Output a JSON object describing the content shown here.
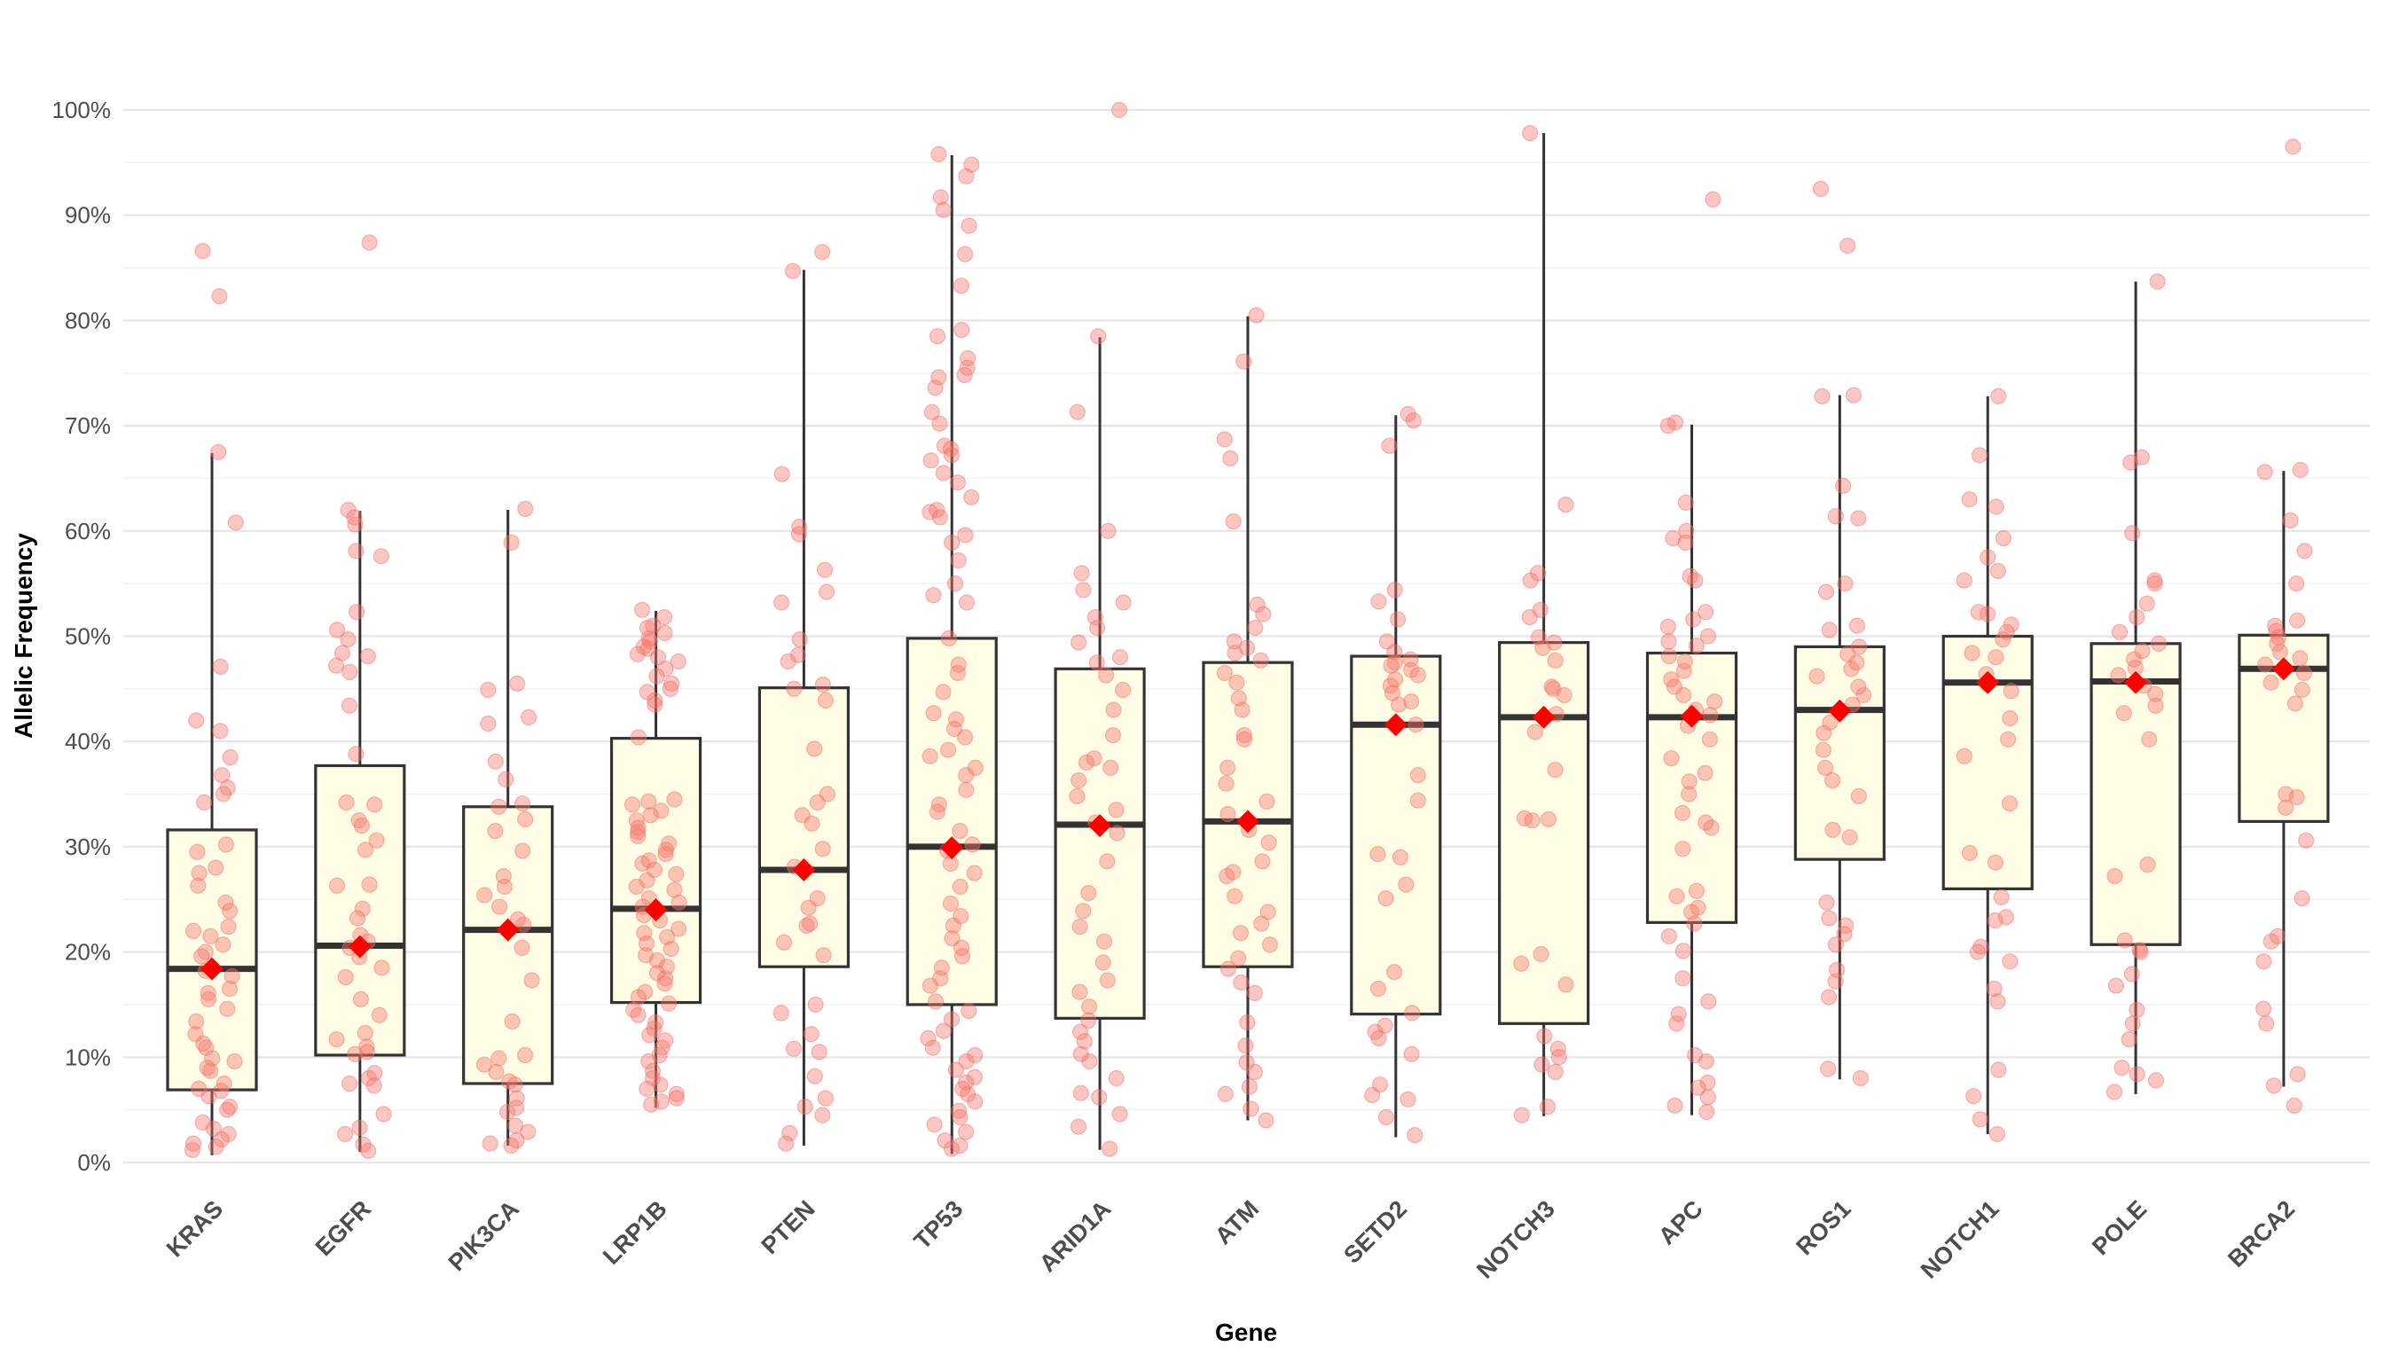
{
  "chart_data": {
    "type": "box",
    "title": "",
    "xlabel": "Gene",
    "ylabel": "Allelic Frequency",
    "ylim": [
      0,
      100
    ],
    "yticks": [
      "0%",
      "10%",
      "20%",
      "30%",
      "40%",
      "50%",
      "60%",
      "70%",
      "80%",
      "90%",
      "100%"
    ],
    "ytick_values": [
      0,
      10,
      20,
      30,
      40,
      50,
      60,
      70,
      80,
      90,
      100
    ],
    "grid": true,
    "legend": "none",
    "colors": {
      "box_fill": "#fffde6",
      "box_stroke": "#333333",
      "points": "#f8766d",
      "mean_marker": "#ff0000"
    },
    "categories": [
      "KRAS",
      "EGFR",
      "PIK3CA",
      "LRP1B",
      "PTEN",
      "TP53",
      "ARID1A",
      "ATM",
      "SETD2",
      "NOTCH3",
      "APC",
      "ROS1",
      "NOTCH1",
      "POLE",
      "BRCA2"
    ],
    "boxes": [
      {
        "gene": "KRAS",
        "whisker_low": 0.7,
        "q1": 6.9,
        "median": 18.4,
        "q3": 31.6,
        "whisker_high": 67.4,
        "mean": 18.4
      },
      {
        "gene": "EGFR",
        "whisker_low": 1.0,
        "q1": 10.2,
        "median": 20.6,
        "q3": 37.7,
        "whisker_high": 61.9,
        "mean": 20.5
      },
      {
        "gene": "PIK3CA",
        "whisker_low": 1.6,
        "q1": 7.5,
        "median": 22.1,
        "q3": 33.8,
        "whisker_high": 62.0,
        "mean": 22.1
      },
      {
        "gene": "LRP1B",
        "whisker_low": 5.2,
        "q1": 15.2,
        "median": 24.1,
        "q3": 40.3,
        "whisker_high": 52.4,
        "mean": 24.0
      },
      {
        "gene": "PTEN",
        "whisker_low": 1.6,
        "q1": 18.6,
        "median": 27.8,
        "q3": 45.1,
        "whisker_high": 84.8,
        "mean": 27.8
      },
      {
        "gene": "TP53",
        "whisker_low": 0.8,
        "q1": 15.0,
        "median": 30.0,
        "q3": 49.8,
        "whisker_high": 95.7,
        "mean": 29.9
      },
      {
        "gene": "ARID1A",
        "whisker_low": 1.2,
        "q1": 13.7,
        "median": 32.1,
        "q3": 46.9,
        "whisker_high": 78.4,
        "mean": 32.0
      },
      {
        "gene": "ATM",
        "whisker_low": 4.0,
        "q1": 18.6,
        "median": 32.4,
        "q3": 47.5,
        "whisker_high": 80.4,
        "mean": 32.4
      },
      {
        "gene": "SETD2",
        "whisker_low": 2.4,
        "q1": 14.1,
        "median": 41.6,
        "q3": 48.1,
        "whisker_high": 71.0,
        "mean": 41.6
      },
      {
        "gene": "NOTCH3",
        "whisker_low": 4.4,
        "q1": 13.2,
        "median": 42.3,
        "q3": 49.4,
        "whisker_high": 97.8,
        "mean": 42.3
      },
      {
        "gene": "APC",
        "whisker_low": 4.5,
        "q1": 22.8,
        "median": 42.3,
        "q3": 48.4,
        "whisker_high": 70.1,
        "mean": 42.4
      },
      {
        "gene": "ROS1",
        "whisker_low": 7.9,
        "q1": 28.8,
        "median": 43.0,
        "q3": 49.0,
        "whisker_high": 72.9,
        "mean": 42.9
      },
      {
        "gene": "NOTCH1",
        "whisker_low": 2.7,
        "q1": 26.0,
        "median": 45.6,
        "q3": 50.0,
        "whisker_high": 72.8,
        "mean": 45.6
      },
      {
        "gene": "POLE",
        "whisker_low": 6.5,
        "q1": 20.7,
        "median": 45.7,
        "q3": 49.3,
        "whisker_high": 83.7,
        "mean": 45.6
      },
      {
        "gene": "BRCA2",
        "whisker_low": 7.2,
        "q1": 32.4,
        "median": 46.9,
        "q3": 50.1,
        "whisker_high": 65.7,
        "mean": 46.9
      }
    ],
    "points": {
      "KRAS": [
        82.3,
        86.6,
        67.5,
        60.8,
        47.1,
        41.0,
        42.0,
        38.5,
        36.8,
        35.6,
        35.0,
        34.2,
        30.2,
        29.5,
        28.0,
        27.5,
        26.3,
        24.7,
        23.9,
        22.4,
        22.0,
        21.5,
        20.7,
        20.0,
        19.6,
        18.2,
        17.7,
        16.5,
        16.1,
        15.5,
        14.6,
        13.4,
        12.2,
        11.3,
        10.9,
        9.9,
        9.6,
        8.7,
        7.5,
        7.0,
        6.3,
        5.3,
        5.0,
        3.8,
        3.2,
        2.7,
        2.2,
        1.8,
        1.5,
        1.2,
        6.8,
        9.0
      ],
      "EGFR": [
        87.4,
        62.0,
        61.3,
        60.6,
        58.1,
        57.6,
        52.3,
        50.6,
        49.7,
        48.4,
        48.1,
        47.2,
        46.6,
        43.4,
        38.8,
        34.2,
        34.0,
        32.5,
        32.0,
        30.6,
        29.7,
        26.4,
        26.3,
        24.1,
        23.2,
        21.6,
        21.0,
        20.4,
        19.5,
        18.5,
        17.6,
        15.5,
        14.0,
        12.3,
        11.7,
        11.0,
        10.5,
        10.3,
        8.5,
        8.0,
        7.5,
        7.3,
        4.6,
        3.3,
        2.7,
        1.7,
        1.1
      ],
      "PIK3CA": [
        62.1,
        58.9,
        45.5,
        44.9,
        42.3,
        41.7,
        38.1,
        36.4,
        34.1,
        33.8,
        32.6,
        31.5,
        29.6,
        27.2,
        26.2,
        25.4,
        24.3,
        23.1,
        22.6,
        20.4,
        17.3,
        13.4,
        10.2,
        9.9,
        9.3,
        8.6,
        7.7,
        7.4,
        6.1,
        5.2,
        4.8,
        3.5,
        2.9,
        2.1,
        1.8,
        1.6
      ],
      "LRP1B": [
        52.5,
        51.8,
        51.0,
        50.8,
        50.3,
        49.8,
        49.5,
        49.0,
        48.8,
        48.3,
        48.0,
        47.6,
        46.9,
        46.2,
        45.5,
        45.0,
        44.7,
        43.9,
        43.5,
        40.4,
        34.5,
        34.3,
        34.0,
        33.4,
        33.0,
        32.5,
        31.8,
        31.4,
        31.0,
        30.3,
        29.7,
        29.3,
        28.7,
        28.4,
        27.8,
        27.4,
        26.8,
        26.2,
        25.9,
        25.1,
        24.7,
        24.3,
        23.5,
        23.0,
        22.2,
        21.8,
        21.4,
        20.8,
        20.3,
        19.7,
        19.2,
        18.6,
        18.0,
        17.5,
        17.0,
        16.2,
        15.7,
        15.1,
        14.5,
        14.0,
        13.3,
        12.7,
        12.1,
        11.6,
        10.9,
        10.2,
        9.6,
        8.7,
        8.0,
        7.4,
        7.0,
        6.5,
        6.1,
        5.8,
        5.5
      ],
      "PTEN": [
        86.5,
        84.7,
        65.4,
        60.4,
        59.7,
        56.3,
        54.2,
        53.2,
        49.7,
        48.2,
        47.6,
        45.4,
        45.0,
        43.9,
        39.3,
        35.0,
        34.2,
        33.0,
        32.2,
        29.8,
        28.1,
        25.1,
        24.2,
        22.7,
        22.5,
        20.9,
        19.7,
        15.0,
        14.2,
        12.2,
        10.8,
        10.5,
        8.2,
        6.1,
        5.3,
        4.5,
        2.8,
        1.8
      ],
      "TP53": [
        95.8,
        94.8,
        93.7,
        91.7,
        90.5,
        89.0,
        86.3,
        83.3,
        79.1,
        78.5,
        76.4,
        75.5,
        74.8,
        74.6,
        73.6,
        71.3,
        70.2,
        68.1,
        67.8,
        67.2,
        66.7,
        65.5,
        64.6,
        63.2,
        62.0,
        61.8,
        61.3,
        59.6,
        58.9,
        57.2,
        55.0,
        53.9,
        53.2,
        49.8,
        47.3,
        46.5,
        44.7,
        42.7,
        42.1,
        41.2,
        40.4,
        39.2,
        38.6,
        37.5,
        36.8,
        35.4,
        34.0,
        33.3,
        31.5,
        30.2,
        29.6,
        28.4,
        27.5,
        26.2,
        24.6,
        23.4,
        22.5,
        21.3,
        20.4,
        19.6,
        18.5,
        17.5,
        16.8,
        15.3,
        14.4,
        13.6,
        12.5,
        11.8,
        10.9,
        10.2,
        9.6,
        8.8,
        8.1,
        7.6,
        7.0,
        6.5,
        5.8,
        4.9,
        4.3,
        3.6,
        2.9,
        2.1,
        1.6,
        1.3
      ],
      "ARID1A": [
        100.0,
        78.5,
        71.3,
        60.0,
        56.0,
        54.4,
        53.2,
        51.8,
        50.8,
        49.4,
        48.0,
        47.5,
        46.3,
        44.9,
        43.0,
        40.6,
        38.4,
        38.0,
        37.5,
        36.3,
        34.8,
        33.5,
        32.3,
        31.3,
        28.6,
        25.6,
        23.9,
        22.4,
        21.0,
        19.0,
        17.3,
        16.2,
        14.8,
        13.5,
        12.4,
        11.5,
        10.3,
        9.6,
        8.0,
        6.6,
        6.2,
        4.6,
        3.4,
        1.3
      ],
      "ATM": [
        80.5,
        76.1,
        68.7,
        66.9,
        60.9,
        53.0,
        52.1,
        50.8,
        49.5,
        48.9,
        48.4,
        47.7,
        46.5,
        45.6,
        44.1,
        43.0,
        40.6,
        40.2,
        37.5,
        36.0,
        34.3,
        33.1,
        31.6,
        30.4,
        28.6,
        27.6,
        27.2,
        25.3,
        23.8,
        22.7,
        21.8,
        20.7,
        19.4,
        18.4,
        17.1,
        16.1,
        13.3,
        11.1,
        9.5,
        8.6,
        7.2,
        6.5,
        5.1,
        4.0
      ],
      "SETD2": [
        71.1,
        70.5,
        68.1,
        54.4,
        53.3,
        51.6,
        49.5,
        48.5,
        47.8,
        47.5,
        47.2,
        46.8,
        46.3,
        45.9,
        45.3,
        44.6,
        43.8,
        43.5,
        41.6,
        36.8,
        34.4,
        29.3,
        29.0,
        26.4,
        25.1,
        18.1,
        16.5,
        14.2,
        13.0,
        12.4,
        11.8,
        10.3,
        7.4,
        6.4,
        6.0,
        4.3,
        2.6
      ],
      "NOTCH3": [
        97.8,
        62.5,
        56.0,
        55.3,
        52.5,
        51.8,
        49.9,
        49.4,
        48.9,
        47.7,
        45.2,
        45.0,
        44.4,
        42.6,
        40.9,
        37.3,
        32.7,
        32.6,
        32.5,
        19.8,
        18.9,
        16.9,
        12.0,
        10.8,
        10.0,
        9.3,
        8.6,
        5.3,
        4.5
      ],
      "APC": [
        91.5,
        70.3,
        70.0,
        62.7,
        60.0,
        59.3,
        58.9,
        55.7,
        55.3,
        52.3,
        51.6,
        50.9,
        50.0,
        49.5,
        49.1,
        48.1,
        47.6,
        46.7,
        45.9,
        45.2,
        44.4,
        43.8,
        43.0,
        42.5,
        41.5,
        40.2,
        38.4,
        37.0,
        36.2,
        35.0,
        33.2,
        32.3,
        31.8,
        29.8,
        25.8,
        25.3,
        24.2,
        23.8,
        22.7,
        21.5,
        20.1,
        17.5,
        15.3,
        14.1,
        13.2,
        10.2,
        9.6,
        7.6,
        7.1,
        6.2,
        5.4,
        4.8
      ],
      "ROS1": [
        92.5,
        87.1,
        72.9,
        72.8,
        64.3,
        61.4,
        61.2,
        55.0,
        54.2,
        51.0,
        50.6,
        49.0,
        48.3,
        47.5,
        46.9,
        46.2,
        45.2,
        44.4,
        43.5,
        41.8,
        40.8,
        39.2,
        37.5,
        36.3,
        34.8,
        31.6,
        30.9,
        24.7,
        23.2,
        22.5,
        21.7,
        20.7,
        18.3,
        17.2,
        15.7,
        8.9,
        8.0
      ],
      "NOTCH1": [
        72.8,
        67.2,
        63.0,
        62.3,
        59.3,
        57.5,
        56.2,
        55.3,
        52.3,
        52.1,
        51.1,
        50.4,
        49.7,
        48.4,
        48.0,
        46.4,
        45.5,
        44.8,
        42.2,
        40.2,
        38.6,
        34.1,
        29.4,
        28.5,
        25.2,
        23.3,
        23.0,
        20.5,
        20.0,
        19.1,
        16.5,
        15.3,
        8.8,
        6.3,
        4.1,
        2.7
      ],
      "POLE": [
        83.7,
        67.0,
        66.5,
        59.8,
        55.3,
        55.0,
        53.1,
        51.8,
        50.4,
        49.3,
        48.6,
        47.8,
        47.0,
        46.3,
        45.3,
        44.5,
        43.4,
        42.7,
        40.2,
        28.3,
        27.2,
        21.1,
        20.2,
        20.0,
        17.9,
        16.8,
        14.5,
        13.2,
        11.7,
        9.0,
        8.4,
        7.8,
        6.7
      ],
      "BRCA2": [
        96.5,
        65.8,
        65.6,
        61.0,
        58.1,
        55.0,
        51.5,
        51.0,
        50.5,
        49.9,
        49.3,
        48.5,
        47.9,
        47.3,
        46.5,
        45.6,
        44.9,
        43.6,
        35.0,
        34.7,
        33.7,
        30.6,
        25.1,
        21.5,
        21.0,
        19.1,
        14.6,
        13.2,
        8.4,
        7.3,
        5.4
      ]
    }
  }
}
